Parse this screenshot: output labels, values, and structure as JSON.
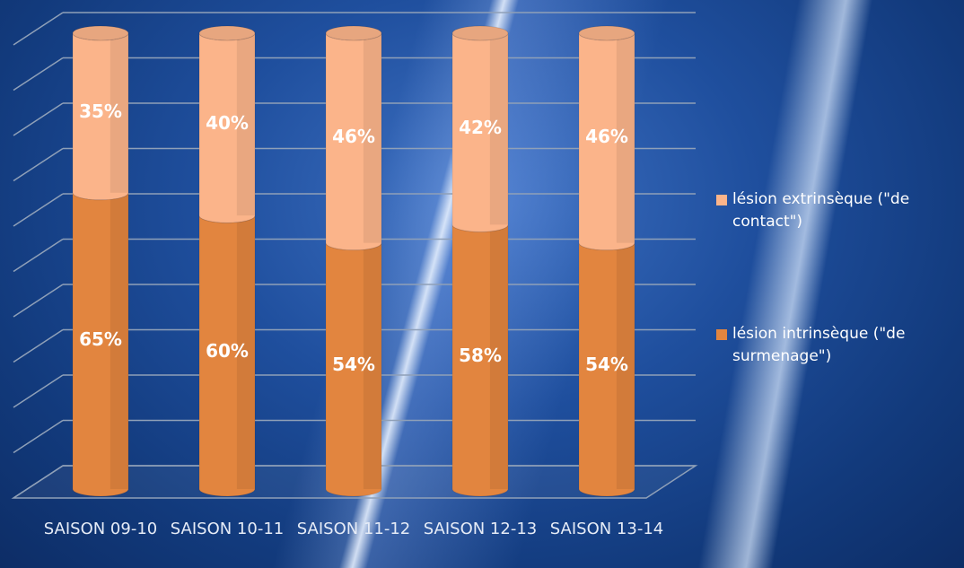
{
  "chart_data": {
    "type": "stacked-cylinder",
    "categories": [
      "SAISON 09-10",
      "SAISON 10-11",
      "SAISON 11-12",
      "SAISON 12-13",
      "SAISON 13-14"
    ],
    "series": [
      {
        "name": "lésion intrinsèque (\"de surmenage\")",
        "color": "#e2853f",
        "values": [
          65,
          60,
          54,
          58,
          54
        ],
        "value_labels": [
          "65%",
          "60%",
          "54%",
          "58%",
          "54%"
        ]
      },
      {
        "name": "lésion extrinsèque (\"de contact\")",
        "color": "#fbb48a",
        "values": [
          35,
          40,
          46,
          42,
          46
        ],
        "value_labels": [
          "35%",
          "40%",
          "46%",
          "42%",
          "46%"
        ]
      }
    ],
    "ylim": [
      0,
      100
    ],
    "yticks": [
      0,
      10,
      20,
      30,
      40,
      50,
      60,
      70,
      80,
      90,
      100
    ],
    "grid": true
  }
}
